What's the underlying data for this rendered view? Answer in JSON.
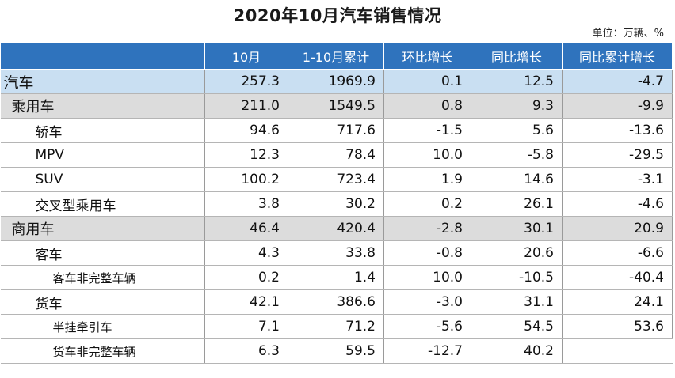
{
  "title": "2020年10月汽车销售情况",
  "unit": "单位：万辆、%",
  "columns": [
    "",
    "10月",
    "1-10月累计",
    "环比增长",
    "同比增长",
    "同比累计增长"
  ],
  "rows": [
    {
      "name": "汽车",
      "level": 0,
      "oct": "257.3",
      "ytd": "1969.9",
      "mom": "0.1",
      "yoy": "12.5",
      "yoy_ytd": "-4.7"
    },
    {
      "name": "乘用车",
      "level": 1,
      "oct": "211.0",
      "ytd": "1549.5",
      "mom": "0.8",
      "yoy": "9.3",
      "yoy_ytd": "-9.9"
    },
    {
      "name": "轿车",
      "level": 2,
      "oct": "94.6",
      "ytd": "717.6",
      "mom": "-1.5",
      "yoy": "5.6",
      "yoy_ytd": "-13.6"
    },
    {
      "name": "MPV",
      "level": 2,
      "oct": "12.3",
      "ytd": "78.4",
      "mom": "10.0",
      "yoy": "-5.8",
      "yoy_ytd": "-29.5"
    },
    {
      "name": "SUV",
      "level": 2,
      "oct": "100.2",
      "ytd": "723.4",
      "mom": "1.9",
      "yoy": "14.6",
      "yoy_ytd": "-3.1"
    },
    {
      "name": "交叉型乘用车",
      "level": 2,
      "oct": "3.8",
      "ytd": "30.2",
      "mom": "0.2",
      "yoy": "26.1",
      "yoy_ytd": "-4.6"
    },
    {
      "name": "商用车",
      "level": 1,
      "oct": "46.4",
      "ytd": "420.4",
      "mom": "-2.8",
      "yoy": "30.1",
      "yoy_ytd": "20.9"
    },
    {
      "name": "客车",
      "level": 2,
      "oct": "4.3",
      "ytd": "33.8",
      "mom": "-0.8",
      "yoy": "20.6",
      "yoy_ytd": "-6.6"
    },
    {
      "name": "客车非完整车辆",
      "level": 3,
      "oct": "0.2",
      "ytd": "1.4",
      "mom": "10.0",
      "yoy": "-10.5",
      "yoy_ytd": "-40.4"
    },
    {
      "name": "货车",
      "level": 2,
      "oct": "42.1",
      "ytd": "386.6",
      "mom": "-3.0",
      "yoy": "31.1",
      "yoy_ytd": "24.1"
    },
    {
      "name": "半挂牵引车",
      "level": 3,
      "oct": "7.1",
      "ytd": "71.2",
      "mom": "-5.6",
      "yoy": "54.5",
      "yoy_ytd": "53.6"
    },
    {
      "name": "货车非完整车辆",
      "level": 3,
      "oct": "6.3",
      "ytd": "59.5",
      "mom": "-12.7",
      "yoy": "40.2",
      "yoy_ytd": ""
    }
  ],
  "colors": {
    "header_bg": "#2f73bd",
    "total_row_bg": "#c9dff2",
    "category_row_bg": "#dcdcdc"
  }
}
